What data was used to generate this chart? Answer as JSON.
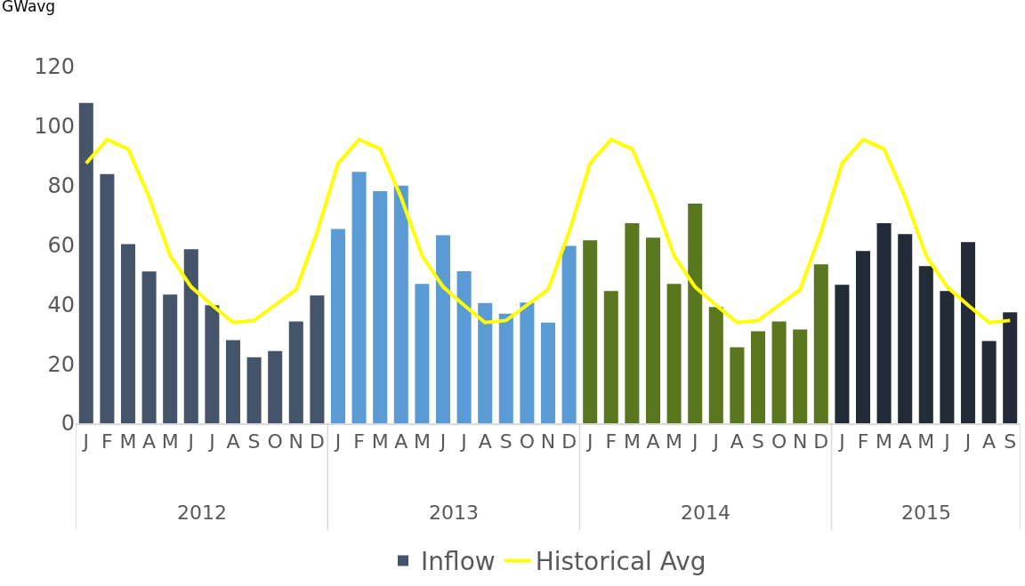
{
  "chart_data": {
    "type": "bar",
    "ylabel": "GWavg",
    "categories": [
      "J",
      "F",
      "M",
      "A",
      "M",
      "J",
      "J",
      "A",
      "S",
      "O",
      "N",
      "D",
      "J",
      "F",
      "M",
      "A",
      "M",
      "J",
      "J",
      "A",
      "S",
      "O",
      "N",
      "D",
      "J",
      "F",
      "M",
      "A",
      "M",
      "J",
      "J",
      "A",
      "S",
      "O",
      "N",
      "D",
      "J",
      "F",
      "M",
      "A",
      "M",
      "J",
      "J",
      "A",
      "S"
    ],
    "series": [
      {
        "name": "Inflow",
        "colors": [
          "#44546a",
          "#44546a",
          "#44546a",
          "#44546a",
          "#44546a",
          "#44546a",
          "#44546a",
          "#44546a",
          "#44546a",
          "#44546a",
          "#44546a",
          "#44546a",
          "#5b9bd5",
          "#5b9bd5",
          "#5b9bd5",
          "#5b9bd5",
          "#5b9bd5",
          "#5b9bd5",
          "#5b9bd5",
          "#5b9bd5",
          "#5b9bd5",
          "#5b9bd5",
          "#5b9bd5",
          "#5b9bd5",
          "#5a7720",
          "#5a7720",
          "#5a7720",
          "#5a7720",
          "#5a7720",
          "#5a7720",
          "#5a7720",
          "#5a7720",
          "#5a7720",
          "#5a7720",
          "#5a7720",
          "#5a7720",
          "#232b37",
          "#232b37",
          "#232b37",
          "#232b37",
          "#232b37",
          "#232b37",
          "#232b37",
          "#232b37",
          "#232b37"
        ],
        "values": [
          107.8,
          83.9,
          60.3,
          51.1,
          43.3,
          58.6,
          39.7,
          28.0,
          22.2,
          24.3,
          34.3,
          43.0,
          65.4,
          84.6,
          78.1,
          80.0,
          46.9,
          63.3,
          51.2,
          40.5,
          36.9,
          40.6,
          33.9,
          59.7,
          61.6,
          44.5,
          67.3,
          62.5,
          46.9,
          73.9,
          39.1,
          25.6,
          31.0,
          34.3,
          31.6,
          53.5,
          46.6,
          58.0,
          67.3,
          63.7,
          52.9,
          44.5,
          61.0,
          27.7,
          37.3
        ]
      },
      {
        "name": "Historical Avg",
        "type": "line",
        "color": "#ffff00",
        "values": [
          87.5,
          95.5,
          92.3,
          76,
          56.4,
          45.9,
          39.7,
          33.9,
          34.6,
          39.8,
          45,
          64.4,
          87.5,
          95.5,
          92.3,
          76,
          56.4,
          45.9,
          39.7,
          33.9,
          34.6,
          39.8,
          45,
          64.4,
          87.5,
          95.5,
          92.3,
          76,
          56.4,
          45.9,
          39.7,
          33.9,
          34.6,
          39.8,
          45,
          64.4,
          87.5,
          95.5,
          92.3,
          76,
          56.4,
          45.9,
          39.7,
          33.9,
          34.6
        ]
      }
    ],
    "annotations": [
      "2012",
      "2013",
      "2014",
      "2015"
    ],
    "ylim": [
      0,
      120
    ],
    "yticks": [
      0,
      20,
      40,
      60,
      80,
      100,
      120
    ],
    "grid": false,
    "legend": "bottom",
    "marker": "none",
    "line_style": "solid"
  }
}
